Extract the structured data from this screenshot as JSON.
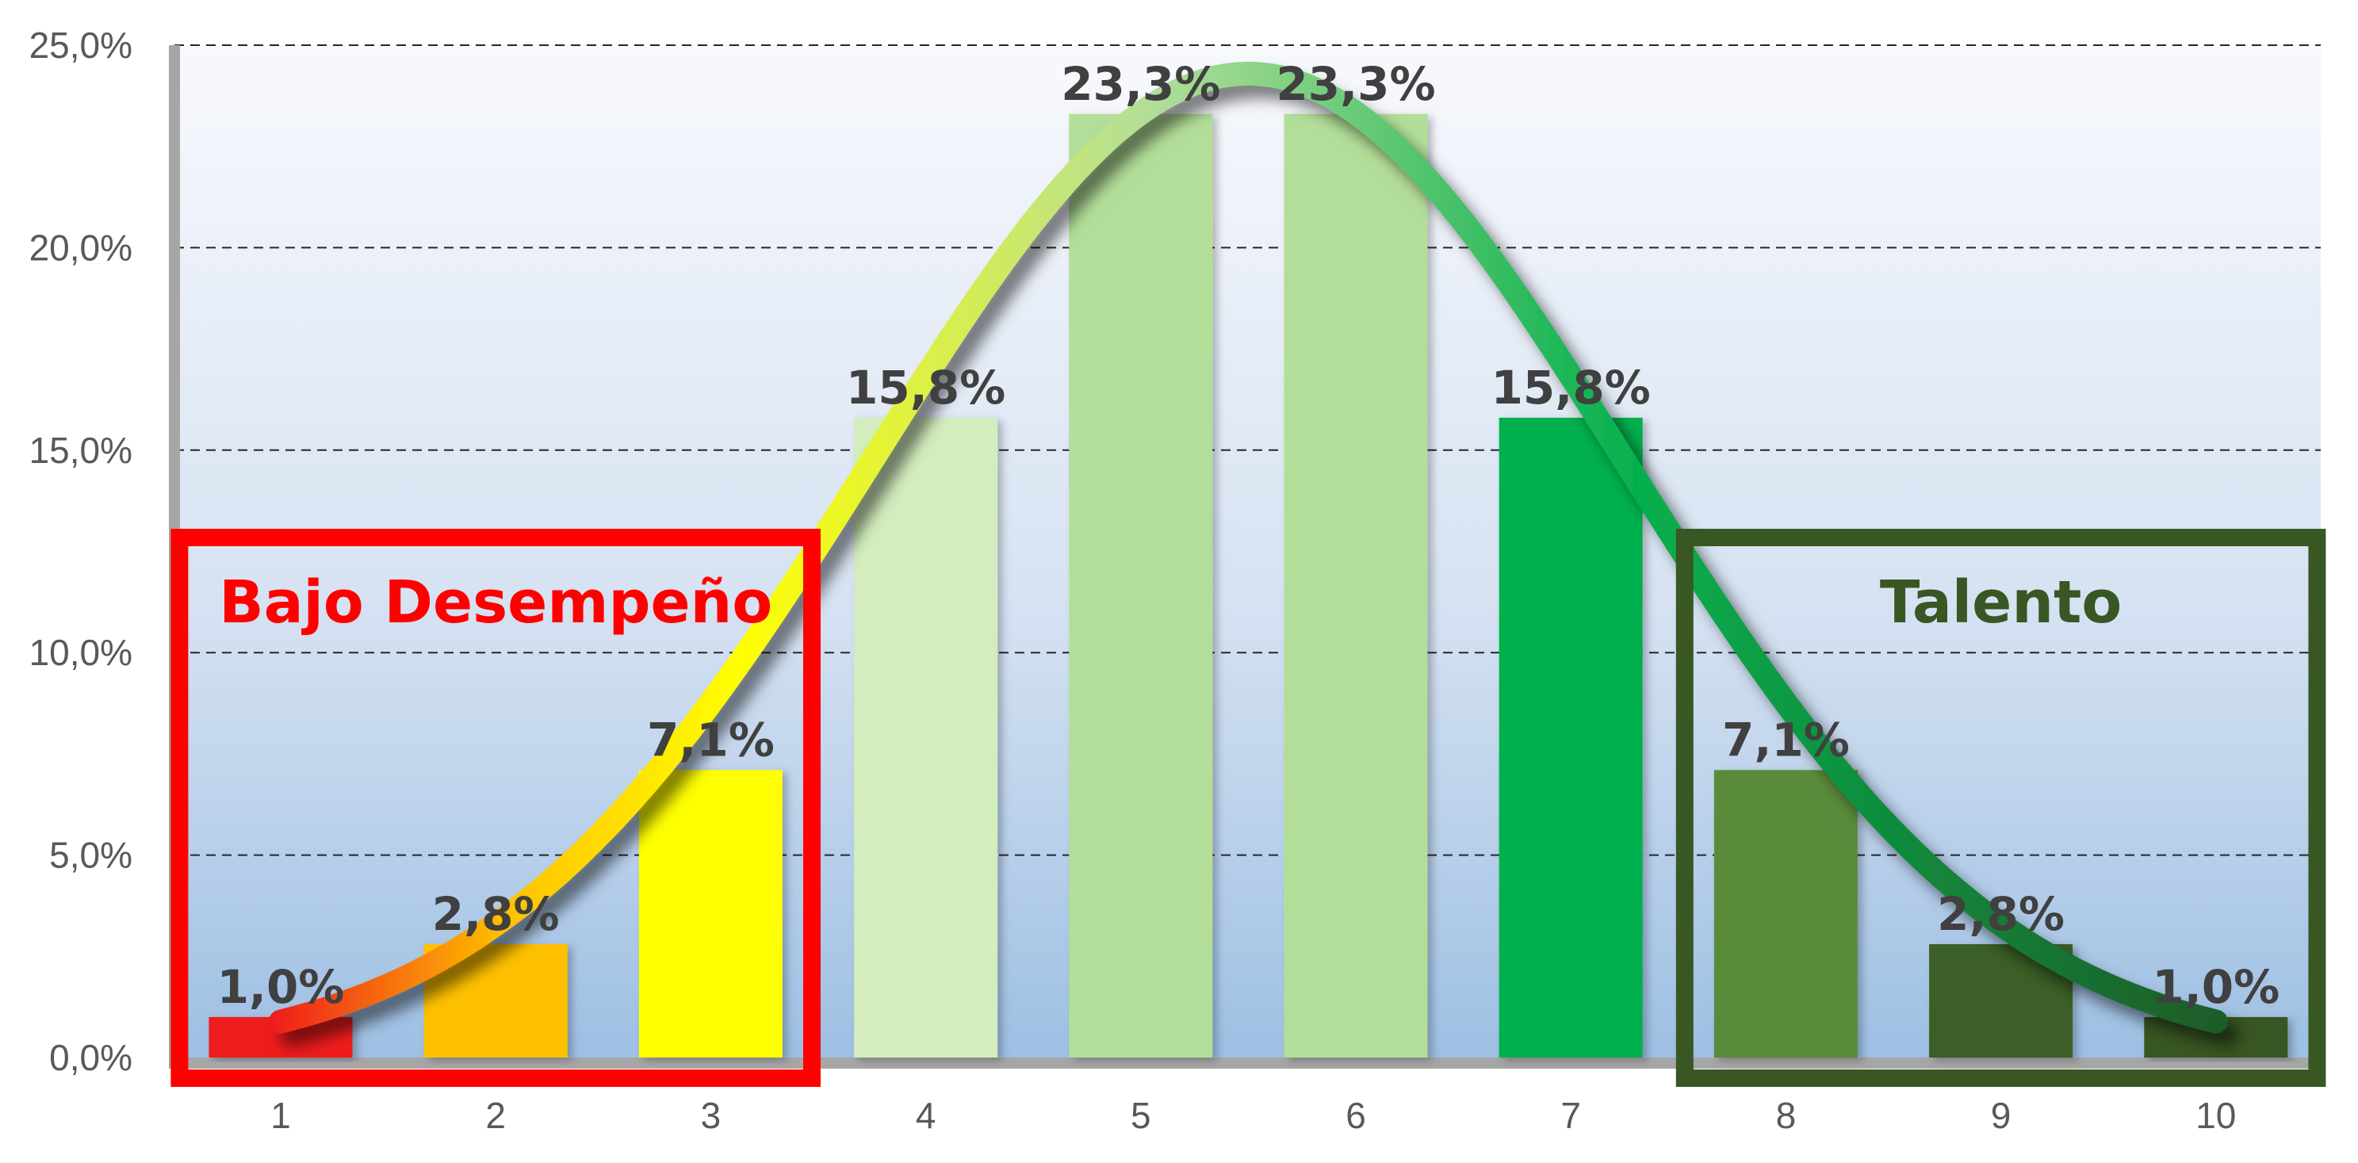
{
  "chart_data": {
    "type": "bar",
    "title": "",
    "xlabel": "",
    "ylabel": "",
    "categories": [
      "1",
      "2",
      "3",
      "4",
      "5",
      "6",
      "7",
      "8",
      "9",
      "10"
    ],
    "values": [
      1.0,
      2.8,
      7.1,
      15.8,
      23.3,
      23.3,
      15.8,
      7.1,
      2.8,
      1.0
    ],
    "data_labels": [
      "1,0%",
      "2,8%",
      "7,1%",
      "15,8%",
      "23,3%",
      "23,3%",
      "15,8%",
      "7,1%",
      "2,8%",
      "1,0%"
    ],
    "ylim": [
      0,
      25
    ],
    "yticks": [
      0,
      5,
      10,
      15,
      20,
      25
    ],
    "ytick_labels": [
      "0,0%",
      "5,0%",
      "10,0%",
      "15,0%",
      "20,0%",
      "25,0%"
    ],
    "grid": "horizontal dashed",
    "legend": "none",
    "bar_colors": [
      "#ee1c1c",
      "#ffc000",
      "#ffff00",
      "#d3edbe",
      "#b3de99",
      "#b3de99",
      "#06b04d",
      "#5a8b3b",
      "#3b5e25",
      "#375623"
    ],
    "overlay_curve": {
      "type": "normal-distribution",
      "peak_value": 24.3,
      "peak_x": 5.5,
      "colors": [
        "#ee1c1c",
        "#ffc000",
        "#ffff00",
        "#b3de99",
        "#06b04d",
        "#1e5c28"
      ]
    },
    "annotations": [
      {
        "text": "Bajo Desempeño",
        "color": "#ff0000",
        "from_category": "1",
        "to_category": "3"
      },
      {
        "text": "Talento",
        "color": "#385723",
        "from_category": "8",
        "to_category": "10"
      }
    ]
  }
}
